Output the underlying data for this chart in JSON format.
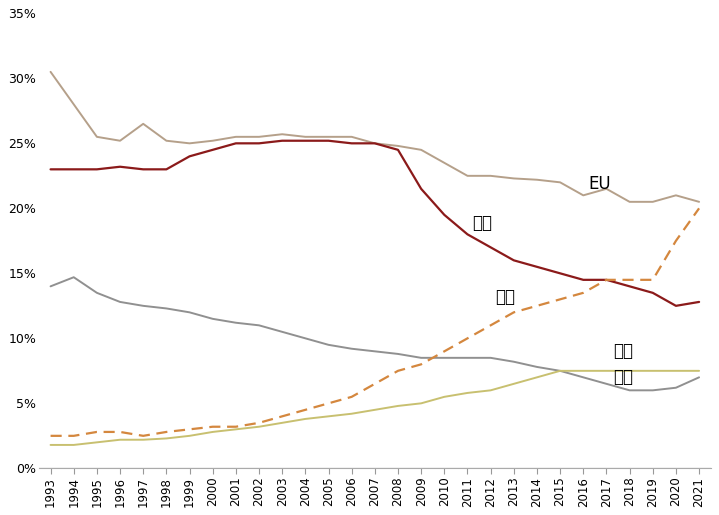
{
  "years": [
    1993,
    1994,
    1995,
    1996,
    1997,
    1998,
    1999,
    2000,
    2001,
    2002,
    2003,
    2004,
    2005,
    2006,
    2007,
    2008,
    2009,
    2010,
    2011,
    2012,
    2013,
    2014,
    2015,
    2016,
    2017,
    2018,
    2019,
    2020,
    2021
  ],
  "EU": [
    30.5,
    28.0,
    25.5,
    25.2,
    26.5,
    25.2,
    25.0,
    25.2,
    25.5,
    25.5,
    25.7,
    25.5,
    25.5,
    25.5,
    25.0,
    24.8,
    24.5,
    23.5,
    22.5,
    22.5,
    22.3,
    22.2,
    22.0,
    21.0,
    21.5,
    20.5,
    20.5,
    21.0,
    20.5
  ],
  "미국": [
    23.0,
    23.0,
    23.0,
    23.2,
    23.0,
    23.0,
    24.0,
    24.5,
    25.0,
    25.0,
    25.2,
    25.2,
    25.2,
    25.0,
    25.0,
    24.5,
    21.5,
    19.5,
    18.0,
    17.0,
    16.0,
    15.5,
    15.0,
    14.5,
    14.5,
    14.0,
    13.5,
    12.5,
    12.8
  ],
  "일본": [
    14.0,
    14.7,
    13.5,
    12.8,
    12.5,
    12.3,
    12.0,
    11.5,
    11.2,
    11.0,
    10.5,
    10.0,
    9.5,
    9.2,
    9.0,
    8.8,
    8.5,
    8.5,
    8.5,
    8.5,
    8.2,
    7.8,
    7.5,
    7.0,
    6.5,
    6.0,
    6.0,
    6.2,
    7.0
  ],
  "중국": [
    2.5,
    2.5,
    2.8,
    2.8,
    2.5,
    2.8,
    3.0,
    3.2,
    3.2,
    3.5,
    4.0,
    4.5,
    5.0,
    5.5,
    6.5,
    7.5,
    8.0,
    9.0,
    10.0,
    11.0,
    12.0,
    12.5,
    13.0,
    13.5,
    14.5,
    14.5,
    14.5,
    17.5,
    20.0
  ],
  "인도": [
    1.8,
    1.8,
    2.0,
    2.2,
    2.2,
    2.3,
    2.5,
    2.8,
    3.0,
    3.2,
    3.5,
    3.8,
    4.0,
    4.2,
    4.5,
    4.8,
    5.0,
    5.5,
    5.8,
    6.0,
    6.5,
    7.0,
    7.5,
    7.5,
    7.5,
    7.5,
    7.5,
    7.5,
    7.5
  ],
  "eu_color": "#b5a08a",
  "us_color": "#8b1a1a",
  "japan_color": "#909090",
  "china_color": "#d4873e",
  "india_color": "#c8c070",
  "ylim": [
    0,
    35
  ],
  "yticks": [
    0,
    5,
    10,
    15,
    20,
    25,
    30,
    35
  ],
  "bg_color": "#ffffff",
  "label_EU": "EU",
  "label_US": "미국",
  "label_Japan": "일본",
  "label_China": "중국",
  "label_India": "인도"
}
